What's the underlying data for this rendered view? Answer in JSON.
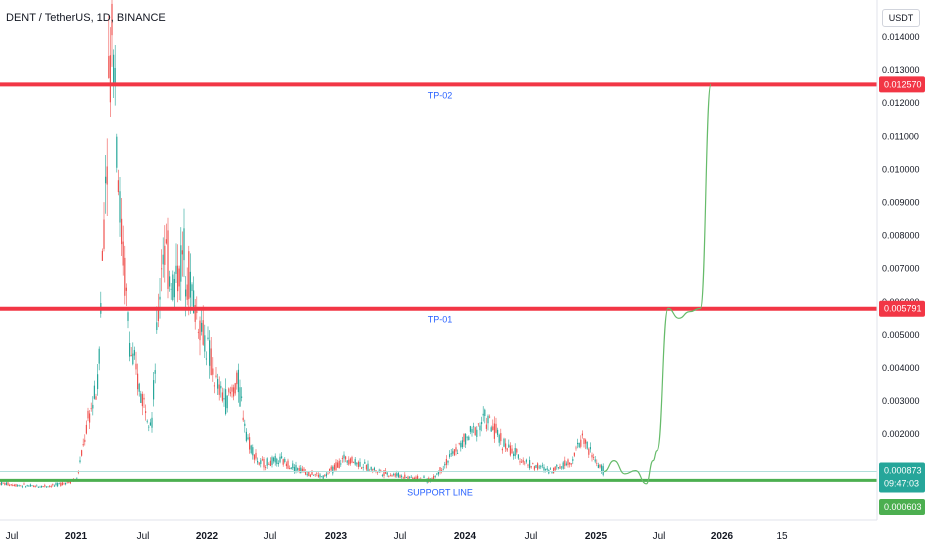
{
  "header": {
    "title": "DENT / TetherUS, 1D, BINANCE",
    "currency": "USDT"
  },
  "colors": {
    "up": "#26a69a",
    "down": "#ef5350",
    "level": "#f23645",
    "support": "#4caf50",
    "projection": "#66bb6a",
    "label": "#2962ff"
  },
  "chart_data": {
    "type": "line",
    "ylim": [
      0,
      0.0145
    ],
    "y_ticks": [
      "0.001000",
      "0.002000",
      "0.003000",
      "0.004000",
      "0.005000",
      "0.006000",
      "0.007000",
      "0.008000",
      "0.009000",
      "0.010000",
      "0.011000",
      "0.012000",
      "0.013000",
      "0.014000"
    ],
    "x_ticks": [
      {
        "label": "Jul",
        "bold": false
      },
      {
        "label": "2021",
        "bold": true
      },
      {
        "label": "Jul",
        "bold": false
      },
      {
        "label": "2022",
        "bold": true
      },
      {
        "label": "Jul",
        "bold": false
      },
      {
        "label": "2023",
        "bold": true
      },
      {
        "label": "Jul",
        "bold": false
      },
      {
        "label": "2024",
        "bold": true
      },
      {
        "label": "Jul",
        "bold": false
      },
      {
        "label": "2025",
        "bold": true
      },
      {
        "label": "Jul",
        "bold": false
      },
      {
        "label": "2026",
        "bold": true
      },
      {
        "label": "15",
        "bold": false
      }
    ],
    "levels": [
      {
        "name": "TP-02",
        "value": 0.01257,
        "price_label": "0.012570"
      },
      {
        "name": "TP-01",
        "value": 0.005791,
        "price_label": "0.005791"
      },
      {
        "name": "SUPPORT LINE",
        "value": 0.000603,
        "price_label": "0.000603"
      }
    ],
    "last_price": {
      "value": 0.000873,
      "label": "0.000873",
      "countdown": "09:47:03"
    },
    "price_series": [
      [
        "2020-05",
        0.00055
      ],
      [
        "2020-07",
        0.00048
      ],
      [
        "2020-09",
        0.00042
      ],
      [
        "2020-11",
        0.00045
      ],
      [
        "2021-01",
        0.00065
      ],
      [
        "2021-02",
        0.0024
      ],
      [
        "2021-03",
        0.0035
      ],
      [
        "2021-04",
        0.0125
      ],
      [
        "2021-04-15",
        0.0145
      ],
      [
        "2021-05",
        0.009
      ],
      [
        "2021-06",
        0.0045
      ],
      [
        "2021-07",
        0.0032
      ],
      [
        "2021-08",
        0.0024
      ],
      [
        "2021-09",
        0.0078
      ],
      [
        "2021-10",
        0.0065
      ],
      [
        "2021-11",
        0.0075
      ],
      [
        "2021-12",
        0.0058
      ],
      [
        "2022-01",
        0.0048
      ],
      [
        "2022-02",
        0.0034
      ],
      [
        "2022-03",
        0.003
      ],
      [
        "2022-04",
        0.0036
      ],
      [
        "2022-05",
        0.0018
      ],
      [
        "2022-06",
        0.0011
      ],
      [
        "2022-08",
        0.0012
      ],
      [
        "2022-10",
        0.0009
      ],
      [
        "2022-12",
        0.0007
      ],
      [
        "2023-02",
        0.0013
      ],
      [
        "2023-04",
        0.001
      ],
      [
        "2023-06",
        0.0008
      ],
      [
        "2023-08",
        0.0007
      ],
      [
        "2023-10",
        0.0006
      ],
      [
        "2023-12",
        0.0014
      ],
      [
        "2024-03",
        0.0025
      ],
      [
        "2024-05",
        0.0016
      ],
      [
        "2024-07",
        0.0011
      ],
      [
        "2024-09",
        0.0009
      ],
      [
        "2024-11",
        0.0012
      ],
      [
        "2024-12",
        0.0019
      ],
      [
        "2025-01",
        0.0013
      ],
      [
        "2025-02",
        0.00087
      ]
    ],
    "projection_series": [
      [
        "2025-02",
        0.00087
      ],
      [
        "2025-03",
        0.0012
      ],
      [
        "2025-04",
        0.0008
      ],
      [
        "2025-05",
        0.0009
      ],
      [
        "2025-06",
        0.0005
      ],
      [
        "2025-06-20",
        0.0012
      ],
      [
        "2025-07",
        0.0015
      ],
      [
        "2025-08",
        0.0058
      ],
      [
        "2025-09",
        0.0055
      ],
      [
        "2025-10",
        0.0057
      ],
      [
        "2025-11",
        0.0058
      ],
      [
        "2025-12",
        0.01257
      ]
    ]
  }
}
